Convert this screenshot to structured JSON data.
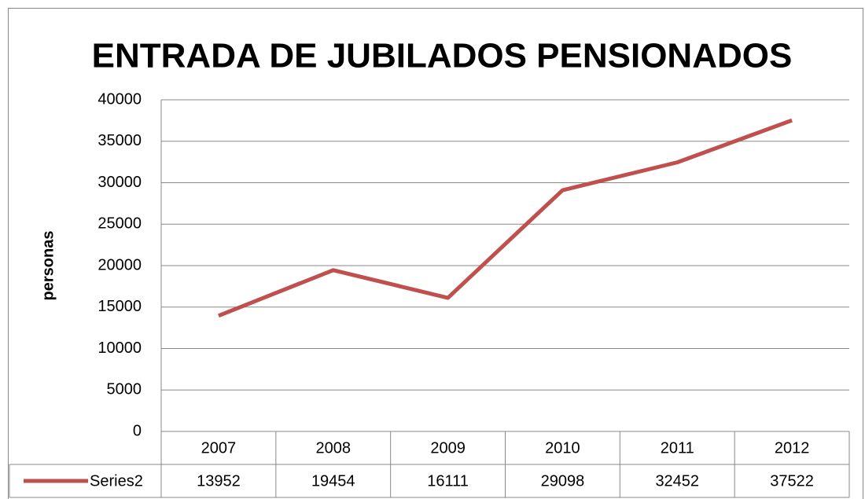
{
  "chart_data": {
    "type": "line",
    "title": "ENTRADA DE JUBILADOS PENSIONADOS",
    "y_label": "personas",
    "categories": [
      "2007",
      "2008",
      "2009",
      "2010",
      "2011",
      "2012"
    ],
    "series": [
      {
        "name": "Series2",
        "color": "#c0504d",
        "values": [
          13952,
          19454,
          16111,
          29098,
          32452,
          37522
        ]
      }
    ],
    "ylim": [
      0,
      40000
    ],
    "yticks": [
      0,
      5000,
      10000,
      15000,
      20000,
      25000,
      30000,
      35000,
      40000
    ],
    "grid": true,
    "legend": "data-table"
  }
}
